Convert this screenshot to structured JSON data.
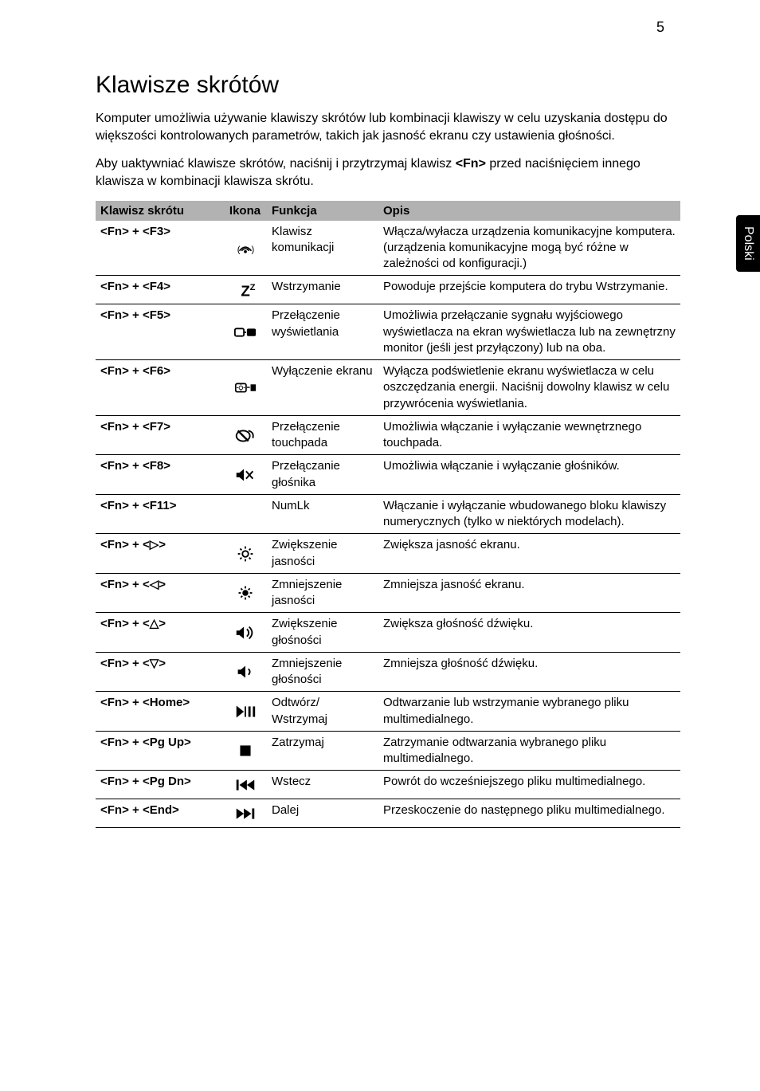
{
  "page_number": "5",
  "side_tab": "Polski",
  "heading": "Klawisze skrótów",
  "paragraphs": [
    "Komputer umożliwia używanie klawiszy skrótów lub kombinacji klawiszy w celu uzyskania dostępu do większości kontrolowanych parametrów, takich jak jasność ekranu czy ustawienia głośności.",
    "Aby uaktywniać klawisze skrótów, naciśnij i przytrzymaj klawisz <Fn> przed naciśnięciem innego klawisza w kombinacji klawisza skrótu."
  ],
  "bold_token": "<Fn>",
  "table": {
    "columns": [
      "Klawisz skrótu",
      "Ikona",
      "Funkcja",
      "Opis"
    ],
    "rows": [
      {
        "key": "<Fn> + <F3>",
        "icon": "wireless",
        "func": "Klawisz komunikacji",
        "desc": "Włącza/wyłacza urządzenia komunikacyjne komputera. (urządzenia komunikacyjne mogą być różne w zależności od konfiguracji.)"
      },
      {
        "key": "<Fn> + <F4>",
        "icon": "sleep",
        "func": "Wstrzymanie",
        "desc": "Powoduje przejście komputera do trybu Wstrzymanie."
      },
      {
        "key": "<Fn> + <F5>",
        "icon": "display-switch",
        "func": "Przełączenie wyświetlania",
        "desc": "Umożliwia przełączanie sygnału wyjściowego wyświetlacza na ekran wyświetlacza lub na zewnętrzny monitor (jeśli jest przyłączony) lub na oba."
      },
      {
        "key": "<Fn> + <F6>",
        "icon": "screen-off",
        "func": "Wyłączenie ekranu",
        "desc": "Wyłącza podświetlenie ekranu wyświetlacza w celu oszczędzania energii. Naciśnij dowolny klawisz w celu przywrócenia wyświetlania."
      },
      {
        "key": "<Fn> + <F7>",
        "icon": "touchpad",
        "func": "Przełączenie touchpada",
        "desc": "Umożliwia włączanie i wyłączanie wewnętrznego touchpada."
      },
      {
        "key": "<Fn> + <F8>",
        "icon": "speaker-mute",
        "func": "Przełączanie głośnika",
        "desc": "Umożliwia włączanie i wyłączanie głośników."
      },
      {
        "key": "<Fn> + <F11>",
        "icon": "none",
        "func": "NumLk",
        "desc": "Włączanie i wyłączanie wbudowanego bloku klawiszy numerycznych (tylko w niektórych modelach)."
      },
      {
        "key": "<Fn> + <▷>",
        "icon": "brightness-up",
        "func": "Zwiększenie jasności",
        "desc": "Zwiększa jasność ekranu."
      },
      {
        "key": "<Fn> + <◁>",
        "icon": "brightness-down",
        "func": "Zmniejszenie jasności",
        "desc": "Zmniejsza jasność ekranu."
      },
      {
        "key": "<Fn> + <△>",
        "icon": "volume-up",
        "func": "Zwiększenie głośności",
        "desc": "Zwiększa głośność dźwięku."
      },
      {
        "key": "<Fn> + <▽>",
        "icon": "volume-down",
        "func": "Zmniejszenie głośności",
        "desc": "Zmniejsza głośność dźwięku."
      },
      {
        "key": "<Fn> + <Home>",
        "icon": "play-pause",
        "func": "Odtwórz/\nWstrzymaj",
        "desc": "Odtwarzanie lub wstrzymanie wybranego pliku multimedialnego."
      },
      {
        "key": "<Fn> + <Pg Up>",
        "icon": "stop",
        "func": "Zatrzymaj",
        "desc": "Zatrzymanie odtwarzania wybranego pliku multimedialnego."
      },
      {
        "key": "<Fn> + <Pg Dn>",
        "icon": "prev",
        "func": "Wstecz",
        "desc": "Powrót do wcześniejszego pliku multimedialnego."
      },
      {
        "key": "<Fn> + <End>",
        "icon": "next",
        "func": "Dalej",
        "desc": "Przeskoczenie do następnego pliku multimedialnego."
      }
    ]
  },
  "colors": {
    "header_bg": "#b2b2b2",
    "border": "#000000",
    "tab_bg": "#000000",
    "tab_fg": "#ffffff",
    "page_bg": "#ffffff"
  }
}
